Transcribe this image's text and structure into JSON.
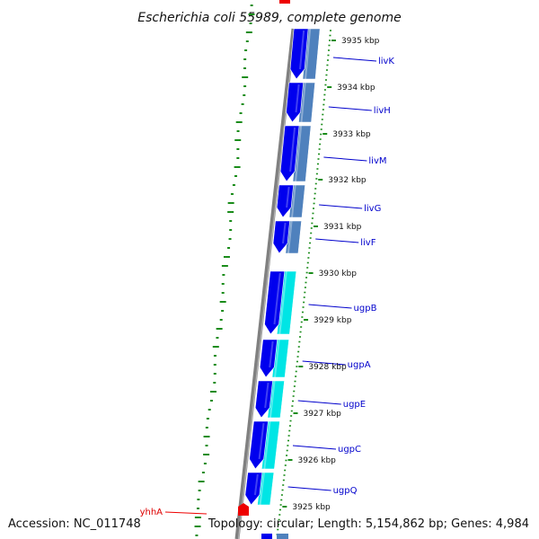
{
  "header": {
    "title": "Escherichia coli 55989, complete genome"
  },
  "footer": {
    "accession": "Accession: NC_011748",
    "topology": "Topology: circular; Length: 5,154,862 bp; Genes: 4,984"
  },
  "colors": {
    "backbone": "#808080",
    "gene_forward": "#0000ee",
    "gene_blue_track": "#4f81bd",
    "gene_cyan_track": "#00e5e5",
    "gc_ticks": "#1a8c1a",
    "scale_ticks": "#1a8c1a",
    "gene_label": "#0000cc",
    "highlight_gene": "#ee0000",
    "text": "#111111"
  },
  "map": {
    "scale_labels": [
      "3935 kbp",
      "3934 kbp",
      "3933 kbp",
      "3932 kbp",
      "3931 kbp",
      "3930 kbp",
      "3929 kbp",
      "3928 kbp",
      "3927 kbp",
      "3926 kbp",
      "3925 kbp"
    ],
    "genes": [
      {
        "name": "livK",
        "track_color": "blue"
      },
      {
        "name": "livH",
        "track_color": "blue"
      },
      {
        "name": "livM",
        "track_color": "blue"
      },
      {
        "name": "livG",
        "track_color": "blue"
      },
      {
        "name": "livF",
        "track_color": "blue"
      },
      {
        "name": "ugpB",
        "track_color": "cyan"
      },
      {
        "name": "ugpA",
        "track_color": "cyan"
      },
      {
        "name": "ugpE",
        "track_color": "cyan"
      },
      {
        "name": "ugpC",
        "track_color": "cyan"
      },
      {
        "name": "ugpQ",
        "track_color": "cyan"
      }
    ],
    "highlight_gene": {
      "name": "yhhA"
    }
  }
}
